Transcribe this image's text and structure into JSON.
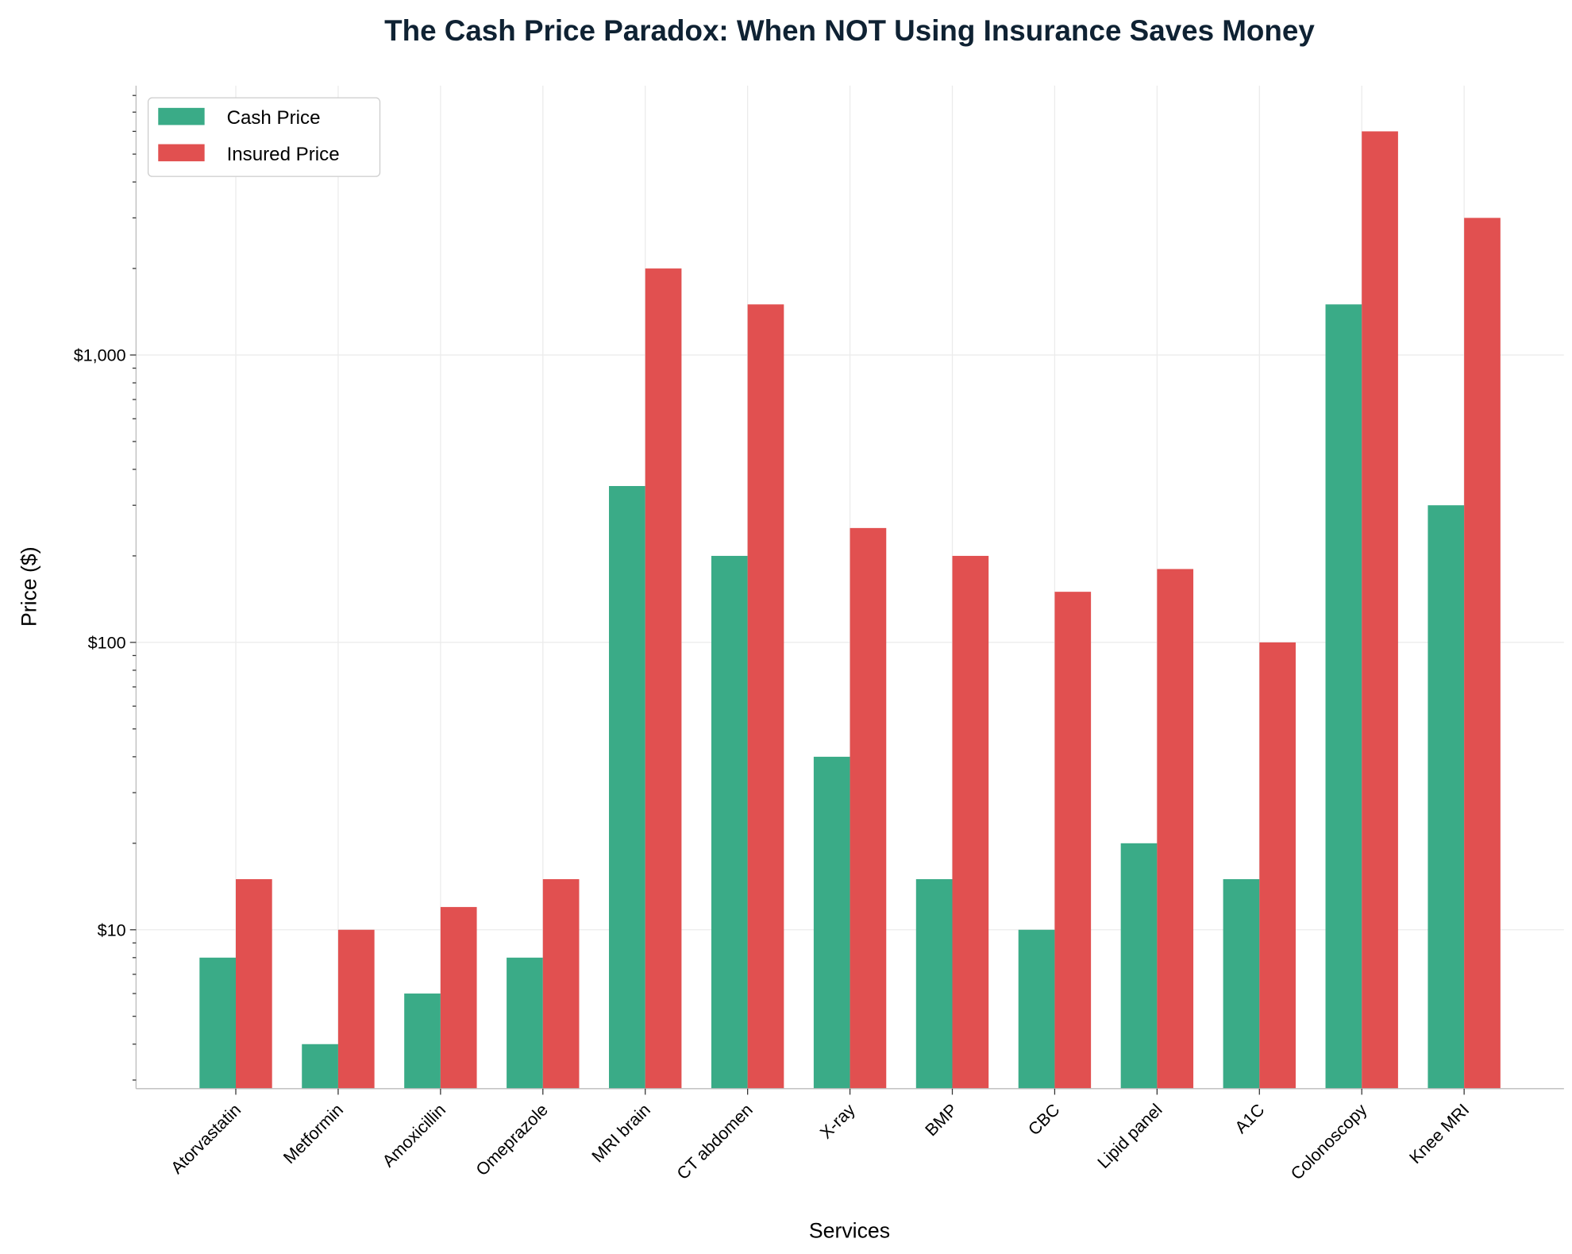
{
  "chart_data": {
    "type": "bar",
    "title": "The Cash Price Paradox: When NOT Using Insurance Saves Money",
    "xlabel": "Services",
    "ylabel": "Price ($)",
    "yscale": "log",
    "ylim": [
      2.8,
      8650
    ],
    "yticks": [
      10,
      100,
      1000
    ],
    "ytick_labels": [
      "$10",
      "$100",
      "$1,000"
    ],
    "grid": true,
    "legend_position": "top-left",
    "categories": [
      "Atorvastatin",
      "Metformin",
      "Amoxicillin",
      "Omeprazole",
      "MRI brain",
      "CT abdomen",
      "X-ray",
      "BMP",
      "CBC",
      "Lipid panel",
      "A1C",
      "Colonoscopy",
      "Knee MRI"
    ],
    "series": [
      {
        "name": "Cash Price",
        "color": "#3aab87",
        "values": [
          8,
          4,
          6,
          8,
          350,
          200,
          40,
          15,
          10,
          20,
          15,
          1500,
          300
        ]
      },
      {
        "name": "Insured Price",
        "color": "#e15050",
        "values": [
          15,
          10,
          12,
          15,
          2000,
          1500,
          250,
          200,
          150,
          180,
          100,
          6000,
          3000
        ]
      }
    ]
  }
}
